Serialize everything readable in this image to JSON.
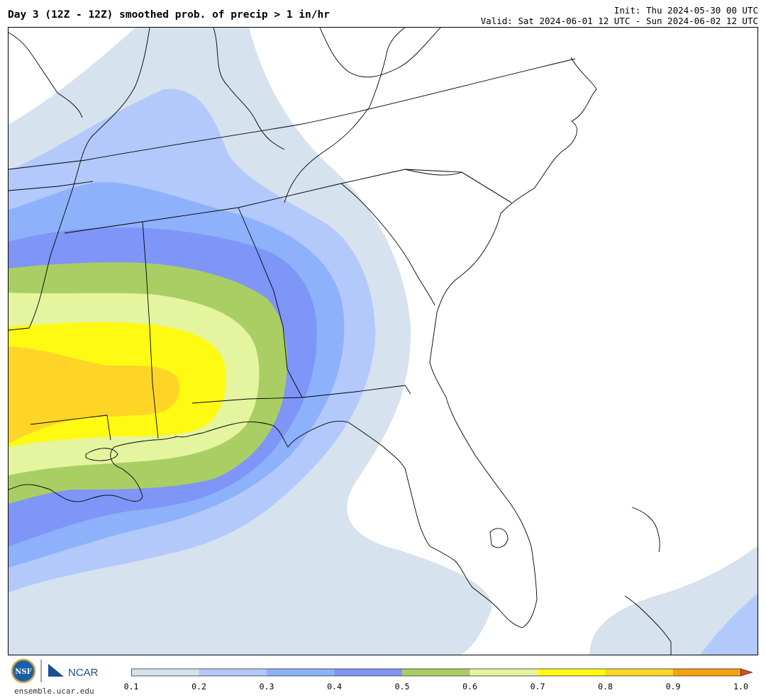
{
  "header": {
    "title": "Day 3 (12Z - 12Z) smoothed prob. of precip > 1 in/hr",
    "init": "Init: Thu 2024-05-30 00 UTC",
    "valid": "Valid: Sat 2024-06-01 12 UTC - Sun 2024-06-02 12 UTC"
  },
  "footer": {
    "nsf_logo_text": "NSF",
    "ncar_logo_text": "NCAR",
    "site": "ensemble.ucar.edu"
  },
  "colorbar": {
    "ticks": [
      "0.1",
      "0.2",
      "0.3",
      "0.4",
      "0.5",
      "0.6",
      "0.7",
      "0.8",
      "0.9",
      "1.0"
    ],
    "colors": [
      "#d6e2ee",
      "#b3c9fb",
      "#8db1fa",
      "#7f95f7",
      "#a9cf64",
      "#e5f49e",
      "#fffa12",
      "#fed527",
      "#f7a10f"
    ],
    "extend_color": "#e8461b"
  },
  "chart_data": {
    "type": "heatmap",
    "title": "Day 3 (12Z - 12Z) smoothed prob. of precip > 1 in/hr",
    "variable": "smoothed probability of precipitation > 1 in/hr",
    "levels": [
      0.1,
      0.2,
      0.3,
      0.4,
      0.5,
      0.6,
      0.7,
      0.8,
      0.9,
      1.0
    ],
    "max_probability_band": "0.8-0.9"
  }
}
